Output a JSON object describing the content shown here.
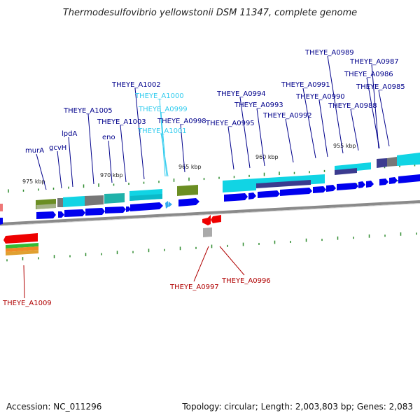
{
  "title": "Thermodesulfovibrio yellowstonii DSM 11347, complete genome",
  "accession": "Accession: NC_011296",
  "topology": "Topology: circular; Length: 2,003,803 bp; Genes: 2,083",
  "colors": {
    "forward_gene": "#0000ee",
    "reverse_gene": "#ee0000",
    "label_forward": "#00008b",
    "label_reverse": "#b00000",
    "label_cyan": "#33ccee",
    "backbone": "#888888",
    "tick": "#2e8b2e",
    "cog_cyan": "#11d4e4",
    "cog_olive": "#6b8e23",
    "cog_gray": "#777777",
    "cog_navy": "#3b3b8f",
    "cog_teal": "#20b2aa"
  },
  "scale_labels": [
    "975 kbp",
    "970 kbp",
    "965 kbp",
    "960 kbp",
    "955 kbp"
  ],
  "gene_labels": {
    "blue": [
      "murA",
      "gcvH",
      "lpdA",
      "THEYE_A1005",
      "eno",
      "THEYE_A1003",
      "THEYE_A1002",
      "THEYE_A0998",
      "THEYE_A0995",
      "THEYE_A0994",
      "THEYE_A0993",
      "THEYE_A0992",
      "THEYE_A0991",
      "THEYE_A0990",
      "THEYE_A0989",
      "THEYE_A0988",
      "THEYE_A0987",
      "THEYE_A0986",
      "THEYE_A0985"
    ],
    "cyan": [
      "THEYE_A1000",
      "THEYE_A0999",
      "THEYE_A1001"
    ],
    "red": [
      "THEYE_A0997",
      "THEYE_A0996",
      "THEYE_A1009"
    ]
  }
}
